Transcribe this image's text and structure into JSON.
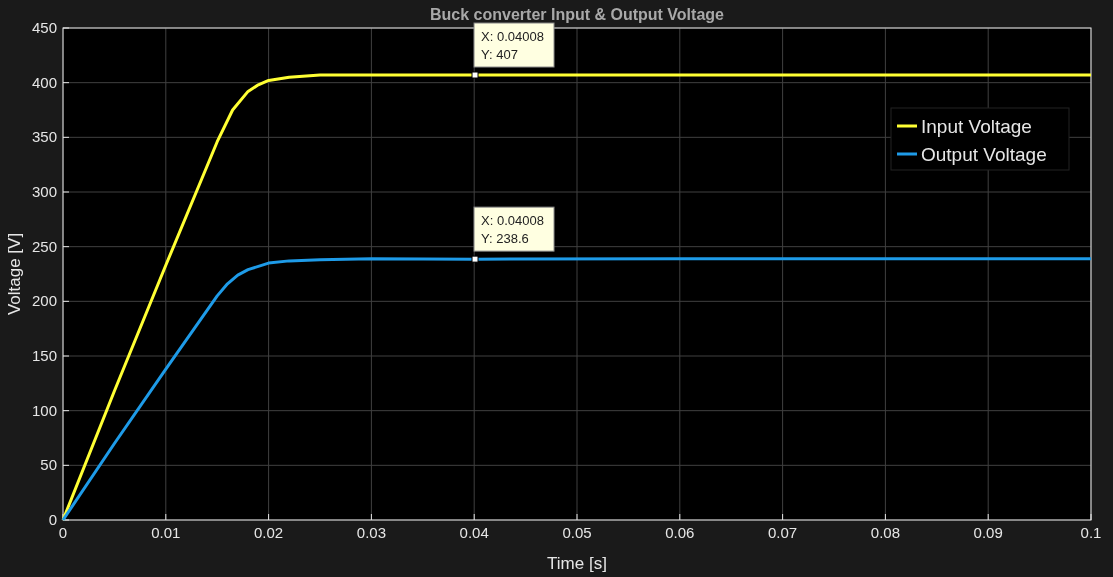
{
  "chart_data": {
    "type": "line",
    "title": "Buck converter Input & Output Voltage",
    "xlabel": "Time [s]",
    "ylabel": "Voltage [V]",
    "xlim": [
      0,
      0.1
    ],
    "xticks": [
      0,
      0.01,
      0.02,
      0.03,
      0.04,
      0.05,
      0.06,
      0.07,
      0.08,
      0.09,
      0.1
    ],
    "ylim": [
      0,
      450
    ],
    "yticks": [
      0,
      50,
      100,
      150,
      200,
      250,
      300,
      350,
      400,
      450
    ],
    "grid": true,
    "legend": "top right",
    "line_style": "solid",
    "series": [
      {
        "name": "Input Voltage",
        "color": "#ffff33",
        "x": [
          0,
          0.005,
          0.01,
          0.015,
          0.0165,
          0.018,
          0.019,
          0.02,
          0.022,
          0.025,
          0.03,
          0.04008,
          0.06,
          0.08,
          0.1
        ],
        "values": [
          0,
          118,
          233,
          346,
          375,
          392,
          398,
          402,
          405,
          407,
          407,
          407,
          407,
          407,
          407
        ]
      },
      {
        "name": "Output Voltage",
        "color": "#1e9be8",
        "x": [
          0,
          0.005,
          0.01,
          0.015,
          0.016,
          0.017,
          0.018,
          0.02,
          0.022,
          0.025,
          0.03,
          0.04008,
          0.06,
          0.08,
          0.1
        ],
        "values": [
          0,
          70,
          138,
          205,
          216,
          224,
          229,
          235,
          237,
          238,
          239,
          238.6,
          239,
          239,
          239
        ]
      }
    ],
    "annotations": [
      {
        "text": "X: 0.04008\nY: 407",
        "x": 0.04008,
        "y": 407
      },
      {
        "text": "X: 0.04008\nY: 238.6",
        "x": 0.04008,
        "y": 238.6
      }
    ]
  }
}
